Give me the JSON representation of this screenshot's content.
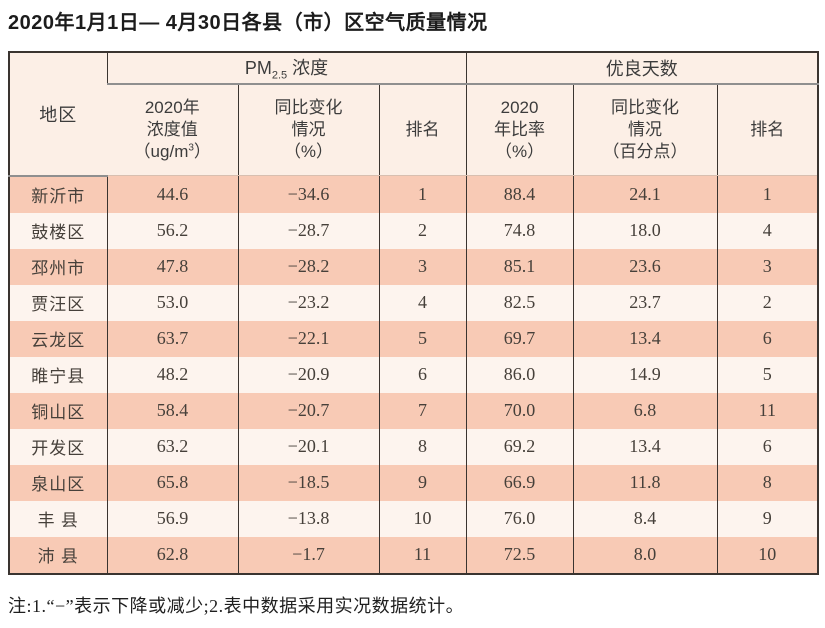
{
  "page": {
    "title": "2020年1月1日— 4月30日各县（市）区空气质量情况",
    "footnote": "注:1.“−”表示下降或减少;2.表中数据采用实况数据统计。"
  },
  "table": {
    "header": {
      "region": "地区",
      "pm_group": {
        "prefix": "PM",
        "sub": "2.5",
        "suffix": " 浓度"
      },
      "good_group": "优良天数",
      "pm_value": {
        "line1": "2020年",
        "line2": "浓度值",
        "unit_prefix": "（ug/m",
        "unit_sup": "3",
        "unit_suffix": "）"
      },
      "pm_change": "同比变化\n情况\n（%）",
      "pm_rank": "排名",
      "good_ratio": "2020\n年比率\n（%）",
      "good_change": "同比变化\n情况\n（百分点）",
      "good_rank": "排名"
    },
    "rows": [
      {
        "region": "新沂市",
        "pm_value": "44.6",
        "pm_change": "−34.6",
        "pm_rank": "1",
        "good_ratio": "88.4",
        "good_change": "24.1",
        "good_rank": "1"
      },
      {
        "region": "鼓楼区",
        "pm_value": "56.2",
        "pm_change": "−28.7",
        "pm_rank": "2",
        "good_ratio": "74.8",
        "good_change": "18.0",
        "good_rank": "4"
      },
      {
        "region": "邳州市",
        "pm_value": "47.8",
        "pm_change": "−28.2",
        "pm_rank": "3",
        "good_ratio": "85.1",
        "good_change": "23.6",
        "good_rank": "3"
      },
      {
        "region": "贾汪区",
        "pm_value": "53.0",
        "pm_change": "−23.2",
        "pm_rank": "4",
        "good_ratio": "82.5",
        "good_change": "23.7",
        "good_rank": "2"
      },
      {
        "region": "云龙区",
        "pm_value": "63.7",
        "pm_change": "−22.1",
        "pm_rank": "5",
        "good_ratio": "69.7",
        "good_change": "13.4",
        "good_rank": "6"
      },
      {
        "region": "睢宁县",
        "pm_value": "48.2",
        "pm_change": "−20.9",
        "pm_rank": "6",
        "good_ratio": "86.0",
        "good_change": "14.9",
        "good_rank": "5"
      },
      {
        "region": "铜山区",
        "pm_value": "58.4",
        "pm_change": "−20.7",
        "pm_rank": "7",
        "good_ratio": "70.0",
        "good_change": "6.8",
        "good_rank": "11"
      },
      {
        "region": "开发区",
        "pm_value": "63.2",
        "pm_change": "−20.1",
        "pm_rank": "8",
        "good_ratio": "69.2",
        "good_change": "13.4",
        "good_rank": "6"
      },
      {
        "region": "泉山区",
        "pm_value": "65.8",
        "pm_change": "−18.5",
        "pm_rank": "9",
        "good_ratio": "66.9",
        "good_change": "11.8",
        "good_rank": "8"
      },
      {
        "region": "丰 县",
        "pm_value": "56.9",
        "pm_change": "−13.8",
        "pm_rank": "10",
        "good_ratio": "76.0",
        "good_change": "8.4",
        "good_rank": "9"
      },
      {
        "region": "沛 县",
        "pm_value": "62.8",
        "pm_change": "−1.7",
        "pm_rank": "11",
        "good_ratio": "72.5",
        "good_change": "8.0",
        "good_rank": "10"
      }
    ]
  },
  "colors": {
    "row_odd": "#f8cab5",
    "row_even": "#fdf4ee",
    "header_bg": "#fcefe6",
    "border_dark": "#3a3430",
    "border_gray": "#8f8f8f",
    "header_underline": "#d8bfb0",
    "text_dark": "#46403a",
    "title_color": "#1c1c1c"
  }
}
